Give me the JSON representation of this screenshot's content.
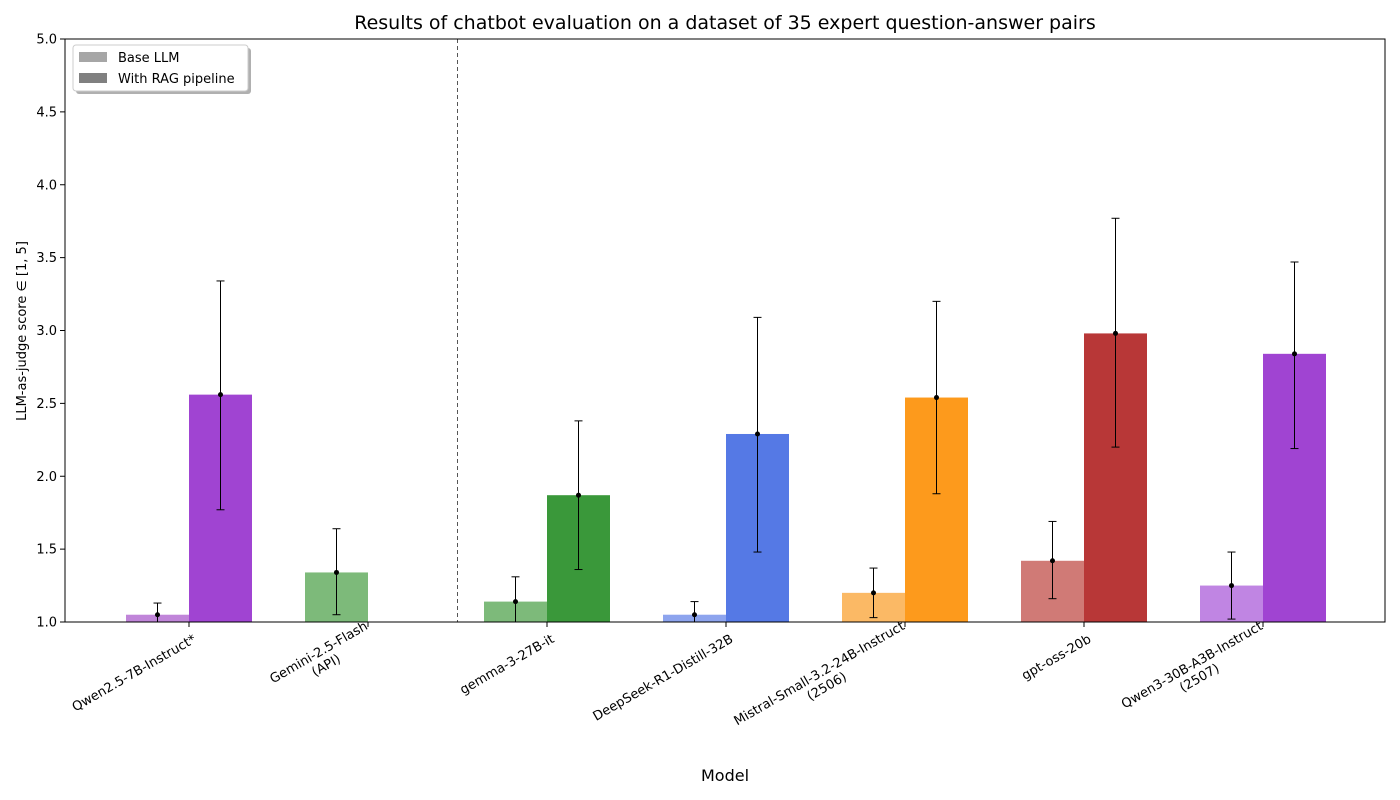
{
  "chart_data": {
    "type": "bar",
    "title": "Results of chatbot evaluation on a dataset of 35 expert question-answer pairs",
    "xlabel": "Model",
    "ylabel": "LLM-as-judge score ∈ [1, 5]",
    "ylim": [
      1.0,
      5.0
    ],
    "yticks": [
      "1.0",
      "1.5",
      "2.0",
      "2.5",
      "3.0",
      "3.5",
      "4.0",
      "4.5",
      "5.0"
    ],
    "grid": false,
    "legend_position": "top-left",
    "legend": [
      {
        "label": "Base LLM",
        "color": "#a6a6a6"
      },
      {
        "label": "With RAG pipeline",
        "color": "#808080"
      }
    ],
    "models": [
      {
        "label_lines": [
          "Qwen2.5-7B-Instruct*"
        ],
        "base": 1.05,
        "base_err": [
          1.0,
          1.13
        ],
        "rag": 2.56,
        "rag_err": [
          1.77,
          3.34
        ],
        "base_color": "#c085d9",
        "rag_color": "#a044d2"
      },
      {
        "label_lines": [
          "Gemini-2.5-Flash",
          "(API)"
        ],
        "base": 1.34,
        "base_err": [
          1.05,
          1.64
        ],
        "rag": null,
        "rag_err": null,
        "base_color": "#7dba7a",
        "rag_color": null
      },
      {
        "label_lines": [
          "gemma-3-27B-it"
        ],
        "base": 1.14,
        "base_err": [
          1.0,
          1.31
        ],
        "rag": 1.87,
        "rag_err": [
          1.36,
          2.38
        ],
        "base_color": "#7dba7a",
        "rag_color": "#3a983a"
      },
      {
        "label_lines": [
          "DeepSeek-R1-Distill-32B"
        ],
        "base": 1.05,
        "base_err": [
          1.0,
          1.14
        ],
        "rag": 2.29,
        "rag_err": [
          1.48,
          3.09
        ],
        "base_color": "#8da4ee",
        "rag_color": "#5579e5"
      },
      {
        "label_lines": [
          "Mistral-Small-3.2-24B-Instruct",
          "(2506)"
        ],
        "base": 1.2,
        "base_err": [
          1.03,
          1.37
        ],
        "rag": 2.54,
        "rag_err": [
          1.88,
          3.2
        ],
        "base_color": "#fbb965",
        "rag_color": "#fd9a1c"
      },
      {
        "label_lines": [
          "gpt-oss-20b"
        ],
        "base": 1.42,
        "base_err": [
          1.16,
          1.69
        ],
        "rag": 2.98,
        "rag_err": [
          2.2,
          3.77
        ],
        "base_color": "#d07a76",
        "rag_color": "#b83737"
      },
      {
        "label_lines": [
          "Qwen3-30B-A3B-Instruct",
          "(2507)"
        ],
        "base": 1.25,
        "base_err": [
          1.02,
          1.48
        ],
        "rag": 2.84,
        "rag_err": [
          2.19,
          3.47
        ],
        "base_color": "#c085e3",
        "rag_color": "#a044d2"
      }
    ],
    "separator_after_model_index": 1
  }
}
